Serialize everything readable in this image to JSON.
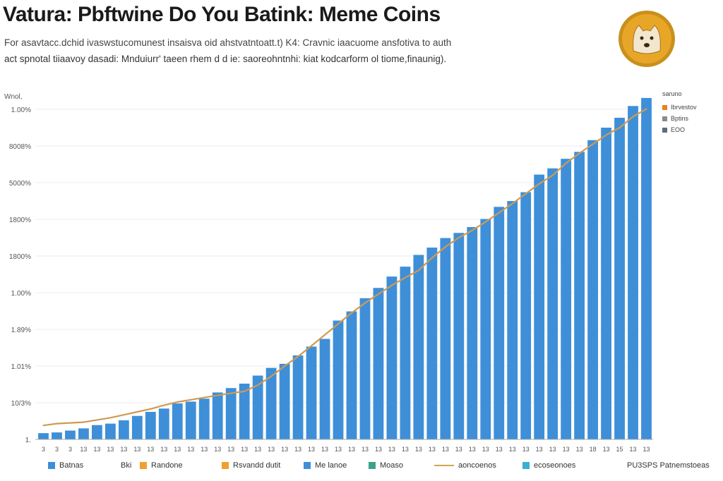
{
  "title": "Vatura: Pbftwine Do You Batink: Meme Coins",
  "subtitle_line1": "For asavtacc.dchid ivaswstucomunest insaisva oid ahstvatntoatt.t) K4:  Cravnic iaacuome ansfotiva to auth",
  "subtitle_line2": "act spnotal tiiaavoy dasadi: Mnduiurr' taeen rhem d d ie: saoreohntnhi: kiat kodcarform ol tiome,finaunig).",
  "logo": {
    "name": "doge-coin-logo",
    "colors": [
      "#e8a628",
      "#c9901c",
      "#f2e6cf"
    ]
  },
  "colors": {
    "bar": "#3e8fd8",
    "line": "#cf9a52",
    "grid": "#eeeeee",
    "axis": "#aaaaaa"
  },
  "legend_right": {
    "title": "saruno",
    "items": [
      {
        "label": "Ibrvestov",
        "color": "#e8821e"
      },
      {
        "label": "Bptins",
        "color": "#8a8a8a"
      },
      {
        "label": "EOO",
        "color": "#5a6f7e"
      }
    ]
  },
  "legend_bottom": [
    {
      "label": "Batnas",
      "color": "#3e8fd8",
      "kind": "box"
    },
    {
      "label": "Bki",
      "color": "#ffffff",
      "kind": "box"
    },
    {
      "label": "Randone",
      "color": "#f0a030",
      "kind": "box"
    },
    {
      "label": "Rsvandd dutit",
      "color": "#f0a030",
      "kind": "box"
    },
    {
      "label": "Me lanoe",
      "color": "#3e8fd8",
      "kind": "box"
    },
    {
      "label": "Moaso",
      "color": "#3aa38b",
      "kind": "box"
    },
    {
      "label": "aoncoenos",
      "color": "#d4a252",
      "kind": "line"
    },
    {
      "label": "ecoseonoes",
      "color": "#39b0d0",
      "kind": "box"
    },
    {
      "label": "PU3SPS Patnemstoeas",
      "color": "#ffffff",
      "kind": "box"
    }
  ],
  "chart_data": {
    "type": "bar",
    "ylabel": "Wnol,",
    "yticks": [
      "1.",
      "10/3%",
      "1.01%",
      "1.89%",
      "1.00%",
      "1800%",
      "1800%",
      "5000%",
      "8008%",
      "1.00%"
    ],
    "ylim": [
      0,
      9
    ],
    "categories": [
      "3",
      "3",
      "3",
      "13",
      "13",
      "13",
      "13",
      "13",
      "13",
      "13",
      "13",
      "13",
      "13",
      "13",
      "13",
      "13",
      "13",
      "13",
      "13",
      "13",
      "13",
      "13",
      "13",
      "13",
      "13",
      "13",
      "13",
      "13",
      "13",
      "13",
      "13",
      "13",
      "13",
      "13",
      "13",
      "13",
      "13",
      "13",
      "13",
      "13",
      "13",
      "18",
      "13",
      "15",
      "13",
      "13"
    ],
    "series": [
      {
        "kind": "bar",
        "values": [
          0.17,
          0.19,
          0.24,
          0.3,
          0.39,
          0.43,
          0.52,
          0.64,
          0.75,
          0.84,
          0.98,
          1.03,
          1.11,
          1.28,
          1.4,
          1.52,
          1.74,
          1.95,
          2.06,
          2.29,
          2.53,
          2.74,
          3.24,
          3.49,
          3.85,
          4.13,
          4.44,
          4.71,
          5.03,
          5.23,
          5.49,
          5.63,
          5.79,
          6.01,
          6.34,
          6.5,
          6.74,
          7.22,
          7.39,
          7.65,
          7.84,
          8.16,
          8.5,
          8.77,
          9.09,
          9.31
        ]
      },
      {
        "kind": "line",
        "values": [
          0.38,
          0.43,
          0.45,
          0.47,
          0.53,
          0.59,
          0.67,
          0.75,
          0.83,
          0.93,
          1.02,
          1.08,
          1.14,
          1.2,
          1.26,
          1.31,
          1.48,
          1.72,
          2.0,
          2.26,
          2.55,
          2.85,
          3.15,
          3.45,
          3.72,
          3.96,
          4.2,
          4.41,
          4.61,
          4.95,
          5.25,
          5.5,
          5.7,
          5.93,
          6.18,
          6.43,
          6.7,
          6.97,
          7.2,
          7.53,
          7.8,
          8.05,
          8.3,
          8.5,
          8.8,
          9.01
        ]
      }
    ],
    "grid": true,
    "legend": "top-right and bottom"
  }
}
